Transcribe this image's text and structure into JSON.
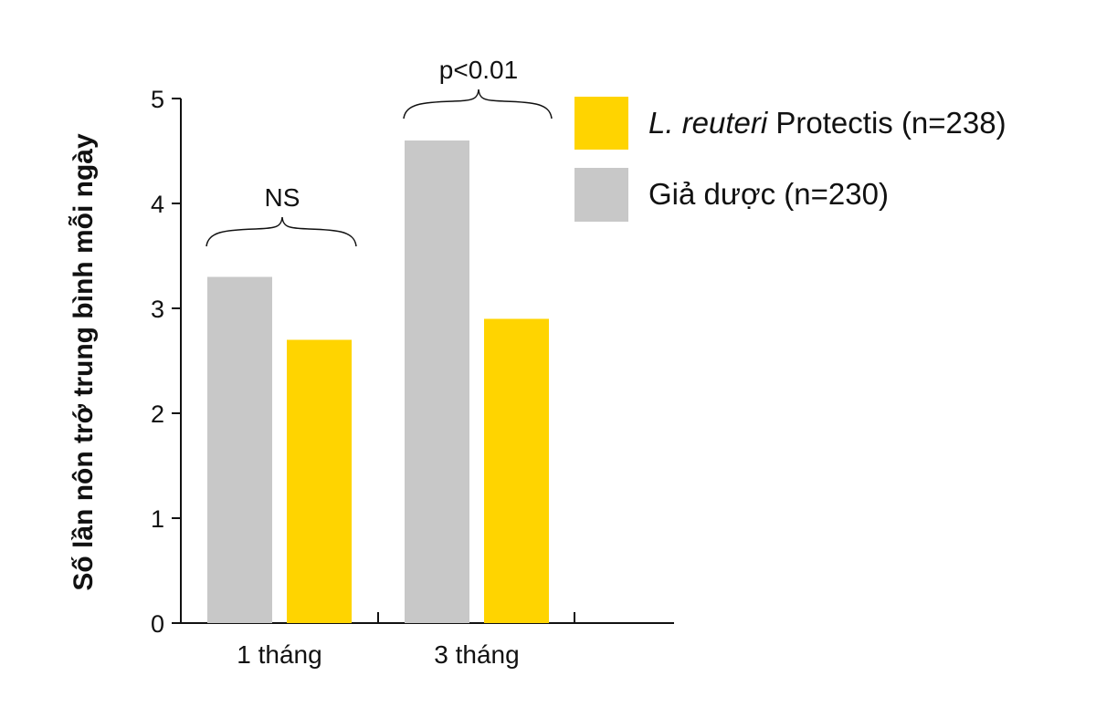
{
  "chart_data": {
    "type": "bar",
    "categories": [
      "1 tháng",
      "3 tháng"
    ],
    "series": [
      {
        "name": "Giả dược (n=230)",
        "values": [
          3.3,
          4.6
        ],
        "color": "#c8c8c8"
      },
      {
        "name_italic": "L. reuteri",
        "name_rest": " Protectis (n=238)",
        "values": [
          2.7,
          2.9
        ],
        "color": "#ffd400"
      }
    ],
    "xlabel": "",
    "ylabel": "Số lần nôn trớ trung bình mỗi ngày",
    "ylim": [
      0,
      5
    ],
    "yticks": [
      "0",
      "1",
      "2",
      "3",
      "4",
      "5"
    ],
    "annotations": [
      "NS",
      "p<0.01"
    ],
    "grid": false,
    "legend_position": "top-right"
  }
}
